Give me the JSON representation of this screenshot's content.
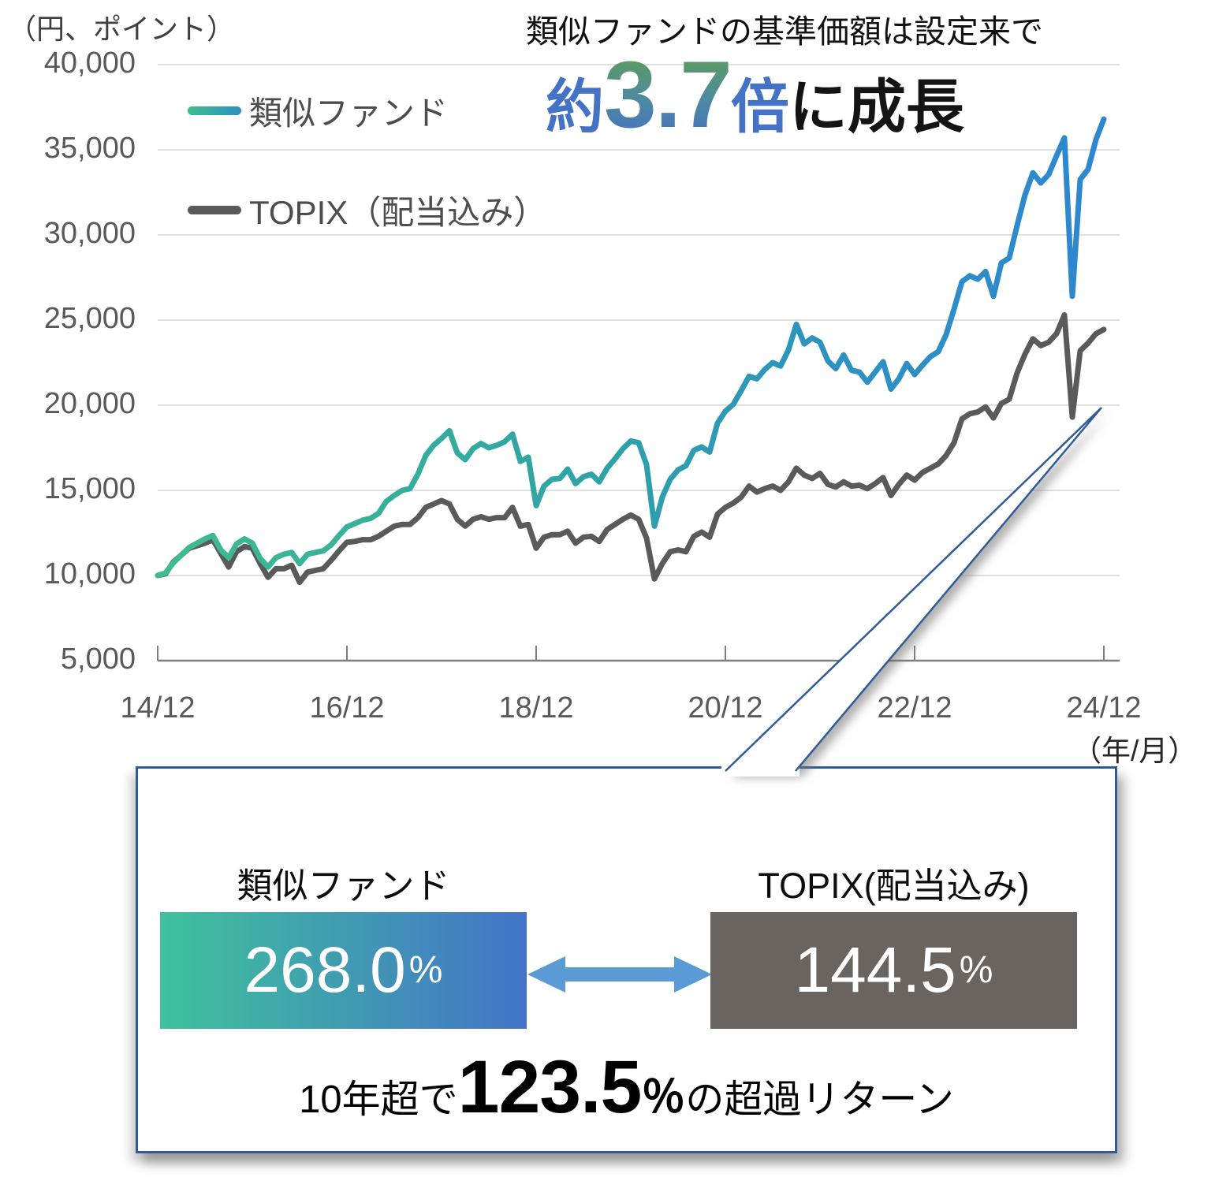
{
  "header": {
    "unit_label": "（円、ポイント）",
    "title": "類似ファンドの基準価額は設定来で",
    "headline": {
      "prefix": "約",
      "multiple": "3.7",
      "bai": "倍",
      "rest": "に成長"
    }
  },
  "legend": [
    {
      "label": "類似ファンド",
      "swatch": "fund-gradient-line"
    },
    {
      "label": "TOPIX（配当込み）",
      "swatch": "gray-line"
    }
  ],
  "chart_data": {
    "type": "line",
    "title": "類似ファンドの基準価額とTOPIX（配当込み）の推移",
    "x_unit_label": "（年/月）",
    "x_start": "2014/12",
    "x_interval": "monthly",
    "x_ticks": [
      "14/12",
      "16/12",
      "18/12",
      "20/12",
      "22/12",
      "24/12"
    ],
    "y_ticks": [
      "40,000",
      "35,000",
      "30,000",
      "25,000",
      "20,000",
      "15,000",
      "10,000",
      "5,000"
    ],
    "y_tick_values": [
      40000,
      35000,
      30000,
      25000,
      20000,
      15000,
      10000,
      5000
    ],
    "ylim": [
      5000,
      40000
    ],
    "grid": "horizontal",
    "legend_position": "top-left",
    "series": [
      {
        "name": "類似ファンド",
        "color_gradient": [
          "#3FBC90",
          "#2FA3A6",
          "#2D93BE",
          "#2E86D2"
        ],
        "values": [
          10000,
          10150,
          10750,
          11200,
          11650,
          11900,
          12150,
          12350,
          11500,
          11050,
          11850,
          12150,
          11900,
          11000,
          10500,
          11050,
          11250,
          11350,
          10700,
          11250,
          11350,
          11450,
          11800,
          12350,
          12850,
          13050,
          13250,
          13350,
          13650,
          14350,
          14700,
          15000,
          15100,
          15950,
          17050,
          17650,
          18050,
          18500,
          17200,
          16800,
          17450,
          17750,
          17500,
          17650,
          17850,
          18300,
          16700,
          16950,
          14100,
          15250,
          15650,
          15700,
          16250,
          15400,
          15800,
          15950,
          15500,
          16300,
          16850,
          17450,
          17900,
          17800,
          16500,
          12900,
          14600,
          15650,
          16200,
          16450,
          17350,
          17550,
          17250,
          18950,
          19650,
          20050,
          20850,
          21700,
          21550,
          22100,
          22500,
          22300,
          23250,
          24750,
          23600,
          23950,
          23700,
          22600,
          22150,
          22950,
          22050,
          21950,
          21350,
          21950,
          22550,
          20950,
          21550,
          22450,
          21800,
          22350,
          22850,
          23150,
          24150,
          25650,
          27250,
          27600,
          27400,
          27850,
          26400,
          28350,
          28650,
          30550,
          32350,
          33650,
          33050,
          33550,
          34650,
          35700,
          26400,
          33250,
          33850,
          35600,
          36800
        ]
      },
      {
        "name": "TOPIX（配当込み）",
        "color": "#5a5a5a",
        "values": [
          10000,
          10100,
          10800,
          11200,
          11600,
          11750,
          11900,
          12100,
          11300,
          10500,
          11400,
          11700,
          11600,
          10700,
          9900,
          10400,
          10400,
          10600,
          9600,
          10200,
          10300,
          10400,
          10900,
          11450,
          11950,
          12000,
          12100,
          12100,
          12300,
          12600,
          12900,
          13000,
          13000,
          13400,
          14000,
          14200,
          14400,
          14200,
          13300,
          12900,
          13300,
          13450,
          13300,
          13400,
          13400,
          14000,
          12900,
          13000,
          11600,
          12250,
          12400,
          12400,
          12600,
          11900,
          12250,
          12300,
          12000,
          12700,
          13000,
          13300,
          13550,
          13300,
          12200,
          9800,
          10700,
          11400,
          11500,
          11400,
          12300,
          12550,
          12250,
          13600,
          14000,
          14250,
          14600,
          15250,
          14900,
          15100,
          15250,
          15000,
          15500,
          16300,
          15900,
          15700,
          16000,
          15350,
          15200,
          15500,
          15250,
          15300,
          15100,
          15400,
          15750,
          14700,
          15350,
          15900,
          15600,
          16050,
          16300,
          16550,
          17050,
          17800,
          19200,
          19500,
          19600,
          19900,
          19250,
          20100,
          20350,
          21900,
          23000,
          23900,
          23500,
          23700,
          24200,
          25300,
          19300,
          23200,
          23650,
          24200,
          24450
        ]
      }
    ]
  },
  "callout": {
    "fund_label": "類似ファンド",
    "fund_value": "268.0",
    "fund_pct_sign": "%",
    "topix_label": "TOPIX(配当込み)",
    "topix_value": "144.5",
    "topix_pct_sign": "%",
    "summary": {
      "pre": "10年超で",
      "big": "123.5",
      "pct": "％",
      "post": "の超過リターン"
    }
  },
  "colors": {
    "gridline": "#D6D6D6",
    "axis": "#7F7F7F",
    "tick_text": "#595959",
    "headline_blue": "#4472C4",
    "headline_green": "#5FA052",
    "fund_box_gradient": [
      "#3EC29B",
      "#4374C8"
    ],
    "topix_box": "#6A6460",
    "arrow": "#5B9BD5",
    "callout_border": "#2F5C99",
    "topix_line": "#5a5a5a"
  }
}
